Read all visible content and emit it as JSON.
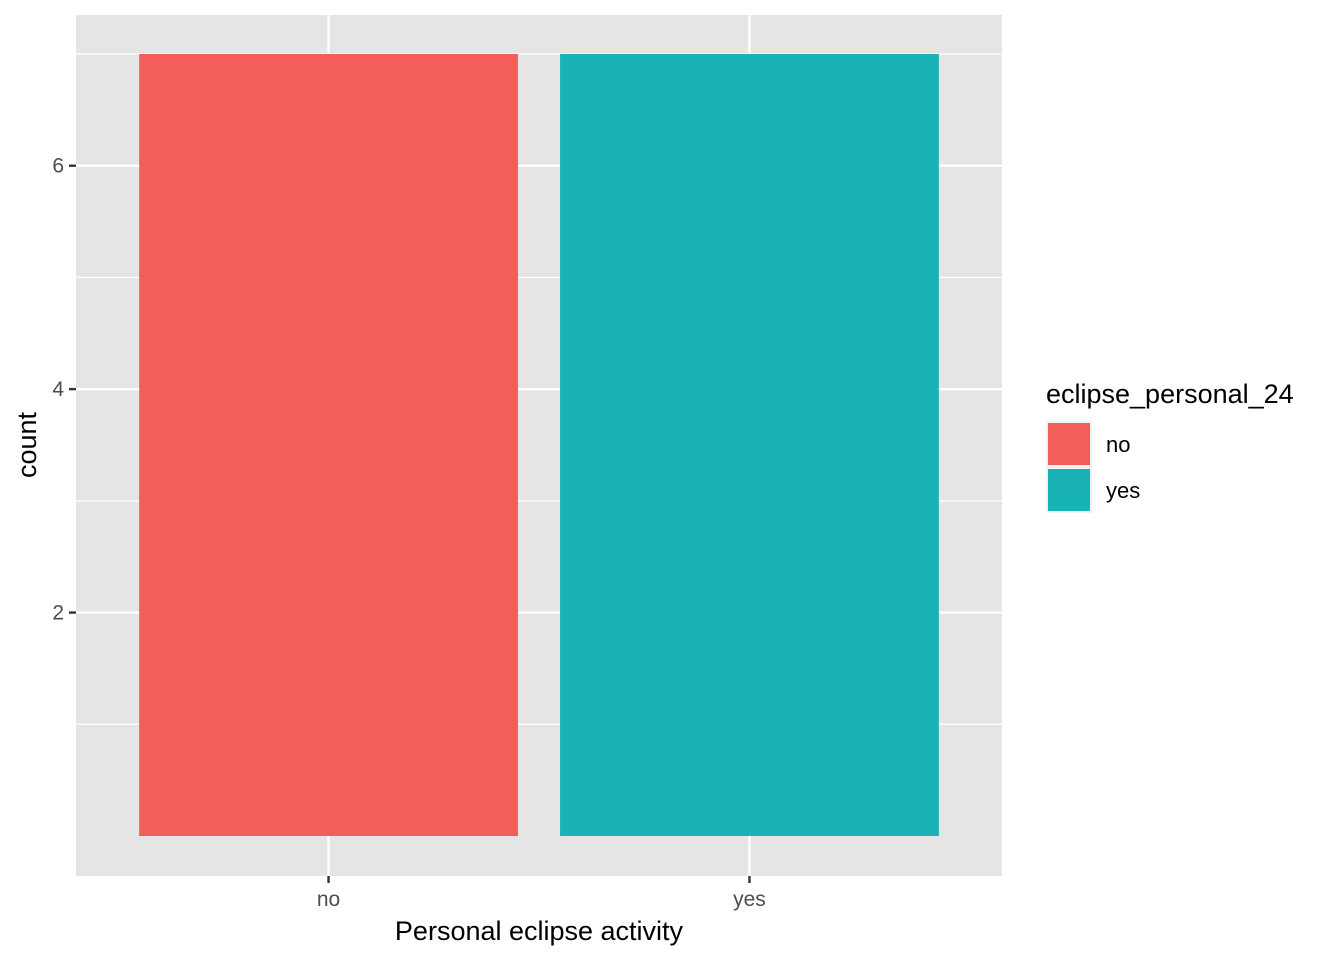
{
  "chart_data": {
    "type": "bar",
    "categories": [
      "no",
      "yes"
    ],
    "values": [
      7,
      7
    ],
    "title": "",
    "xlabel": "Personal eclipse activity",
    "ylabel": "count",
    "ylim": [
      0,
      7
    ],
    "yticks": [
      2,
      4,
      6
    ],
    "grid": true,
    "fill_colors": [
      "#F35E5A",
      "#19B3B7"
    ],
    "legend": {
      "title": "eclipse_personal_24",
      "placement": "right",
      "entries": [
        {
          "label": "no",
          "color": "#F35E5A"
        },
        {
          "label": "yes",
          "color": "#19B3B7"
        }
      ]
    }
  }
}
